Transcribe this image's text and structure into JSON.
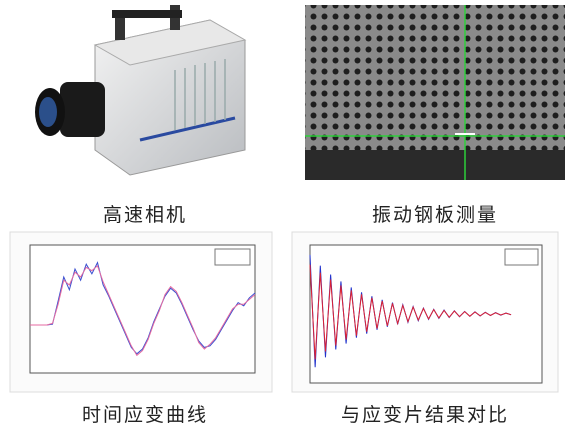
{
  "captions": {
    "camera": "高速相机",
    "plate": "振动钢板测量",
    "strain_curve": "时间应变曲线",
    "comparison": "与应变片结果对比"
  },
  "chart_data": [
    {
      "type": "line",
      "xlim": [
        0,
        40
      ],
      "ylim": [
        -3000,
        5000
      ],
      "x": [
        0,
        1,
        2,
        3,
        4,
        5,
        6,
        7,
        8,
        9,
        10,
        11,
        12,
        13,
        14,
        15,
        16,
        17,
        18,
        19,
        20,
        21,
        22,
        23,
        24,
        25,
        26,
        27,
        28,
        29,
        30,
        31,
        32,
        33,
        34,
        35,
        36,
        37,
        38,
        39,
        40
      ],
      "series": [
        {
          "color": "#3a4fd0",
          "values": [
            0,
            0,
            0,
            0,
            50,
            1500,
            3000,
            2200,
            3500,
            2800,
            3800,
            3200,
            3900,
            2500,
            1800,
            1000,
            200,
            -600,
            -1400,
            -1800,
            -1500,
            -800,
            200,
            1000,
            1800,
            2300,
            2000,
            1300,
            500,
            -300,
            -1000,
            -1400,
            -1300,
            -900,
            -300,
            300,
            900,
            1400,
            1200,
            1700,
            2000
          ]
        },
        {
          "color": "#e46aa0",
          "values": [
            0,
            0,
            0,
            0,
            100,
            1300,
            2800,
            2500,
            3300,
            3000,
            3600,
            3400,
            3700,
            2700,
            1900,
            1100,
            300,
            -500,
            -1300,
            -1900,
            -1600,
            -900,
            100,
            900,
            1900,
            2400,
            2100,
            1400,
            600,
            -200,
            -1100,
            -1500,
            -1200,
            -800,
            -200,
            400,
            1000,
            1300,
            1300,
            1600,
            1900
          ]
        }
      ]
    },
    {
      "type": "line",
      "xlim": [
        0,
        45
      ],
      "ylim": [
        -3500,
        3500
      ],
      "x": [
        0,
        1,
        2,
        3,
        4,
        5,
        6,
        7,
        8,
        9,
        10,
        11,
        12,
        13,
        14,
        15,
        16,
        17,
        18,
        19,
        20,
        21,
        22,
        23,
        24,
        25,
        26,
        27,
        28,
        29,
        30,
        31,
        32,
        33,
        34,
        35,
        36,
        37,
        38,
        39
      ],
      "series": [
        {
          "color": "#2233cc",
          "values": [
            3000,
            -2700,
            2450,
            -2200,
            2000,
            -1800,
            1650,
            -1500,
            1350,
            -1200,
            1100,
            -1000,
            900,
            -800,
            720,
            -650,
            580,
            -520,
            470,
            -420,
            380,
            -340,
            300,
            -270,
            240,
            -220,
            200,
            -180,
            160,
            -140,
            130,
            -120,
            110,
            -100,
            90,
            -80,
            70,
            -60,
            50,
            -40
          ]
        },
        {
          "color": "#dd2233",
          "values": [
            2500,
            -2300,
            2100,
            -1900,
            1750,
            -1600,
            1450,
            -1300,
            1200,
            -1100,
            1000,
            -900,
            820,
            -740,
            660,
            -600,
            540,
            -480,
            430,
            -390,
            350,
            -310,
            280,
            -250,
            220,
            -200,
            180,
            -160,
            150,
            -130,
            120,
            -110,
            100,
            -90,
            80,
            -70,
            60,
            -50,
            45,
            -35
          ]
        }
      ]
    }
  ]
}
